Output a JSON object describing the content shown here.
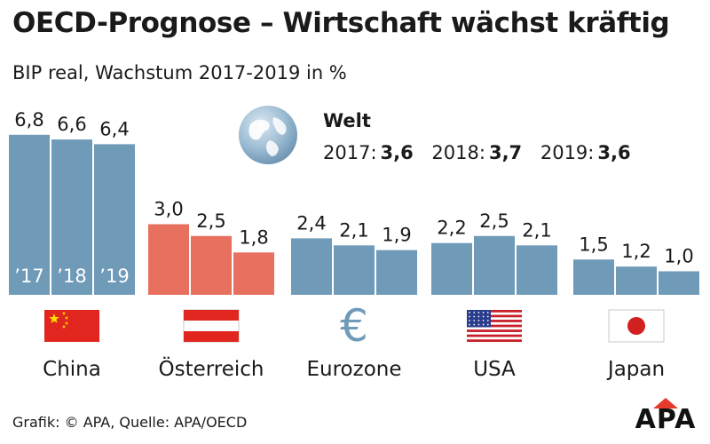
{
  "title": "OECD-Prognose – Wirtschaft wächst kräftig",
  "subtitle": "BIP real, Wachstum 2017-2019 in %",
  "world": {
    "label": "Welt",
    "entries": [
      {
        "year": "2017:",
        "value": "3,6"
      },
      {
        "year": "2018:",
        "value": "3,7"
      },
      {
        "year": "2019:",
        "value": "3,6"
      }
    ]
  },
  "footer": "Grafik: © APA, Quelle: APA/OECD",
  "logo": "APA",
  "colors": {
    "bar_default": "#6f9ab8",
    "bar_highlight": "#e8705f",
    "text": "#1a1a1a"
  },
  "chart_data": {
    "type": "bar",
    "title": "OECD-Prognose – Wirtschaft wächst kräftig",
    "subtitle": "BIP real, Wachstum 2017-2019 in %",
    "year_labels": [
      "’17",
      "’18",
      "’19"
    ],
    "groups": [
      {
        "name": "China",
        "icon": "china-flag-icon",
        "highlight": false,
        "values": [
          6.8,
          6.6,
          6.4
        ],
        "labels": [
          "6,8",
          "6,6",
          "6,4"
        ]
      },
      {
        "name": "Österreich",
        "icon": "austria-flag-icon",
        "highlight": true,
        "values": [
          3.0,
          2.5,
          1.8
        ],
        "labels": [
          "3,0",
          "2,5",
          "1,8"
        ]
      },
      {
        "name": "Eurozone",
        "icon": "euro-icon",
        "highlight": false,
        "values": [
          2.4,
          2.1,
          1.9
        ],
        "labels": [
          "2,4",
          "2,1",
          "1,9"
        ]
      },
      {
        "name": "USA",
        "icon": "usa-flag-icon",
        "highlight": false,
        "values": [
          2.2,
          2.5,
          2.1
        ],
        "labels": [
          "2,2",
          "2,5",
          "2,1"
        ]
      },
      {
        "name": "Japan",
        "icon": "japan-flag-icon",
        "highlight": false,
        "values": [
          1.5,
          1.2,
          1.0
        ],
        "labels": [
          "1,5",
          "1,2",
          "1,0"
        ]
      }
    ]
  }
}
